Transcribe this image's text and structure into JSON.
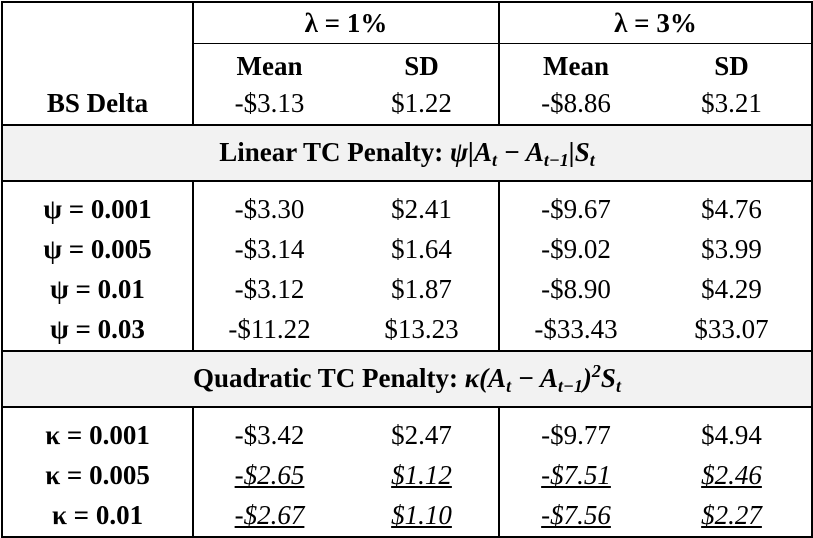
{
  "header": {
    "group1": "λ = 1%",
    "group2": "λ = 3%",
    "col_mean": "Mean",
    "col_sd": "SD"
  },
  "baseline": {
    "label": "BS Delta",
    "values": [
      "-$3.13",
      "$1.22",
      "-$8.86",
      "$3.21"
    ]
  },
  "linear": {
    "title_text": "Linear TC Penalty: ",
    "symbol": "ψ",
    "rows": [
      {
        "label": "ψ = 0.001",
        "values": [
          "-$3.30",
          "$2.41",
          "-$9.67",
          "$4.76"
        ]
      },
      {
        "label": "ψ  = 0.005",
        "values": [
          "-$3.14",
          "$1.64",
          "-$9.02",
          "$3.99"
        ]
      },
      {
        "label": "ψ  = 0.01",
        "values": [
          "-$3.12",
          "$1.87",
          "-$8.90",
          "$4.29"
        ]
      },
      {
        "label": "ψ  = 0.03",
        "values": [
          "-$11.22",
          "$13.23",
          "-$33.43",
          "$33.07"
        ]
      }
    ]
  },
  "quadratic": {
    "title_text": "Quadratic TC Penalty: ",
    "symbol": "κ",
    "rows": [
      {
        "label": "κ  = 0.001",
        "values": [
          "-$3.42",
          "$2.47",
          "-$9.77",
          "$4.94"
        ],
        "underlined": false
      },
      {
        "label": "κ  = 0.005",
        "values": [
          "-$2.65",
          "$1.12",
          "-$7.51",
          "$2.46"
        ],
        "underlined": true
      },
      {
        "label": "κ  = 0.01",
        "values": [
          "-$2.67",
          "$1.10",
          "-$7.56",
          "$2.27"
        ],
        "underlined": true
      }
    ]
  }
}
